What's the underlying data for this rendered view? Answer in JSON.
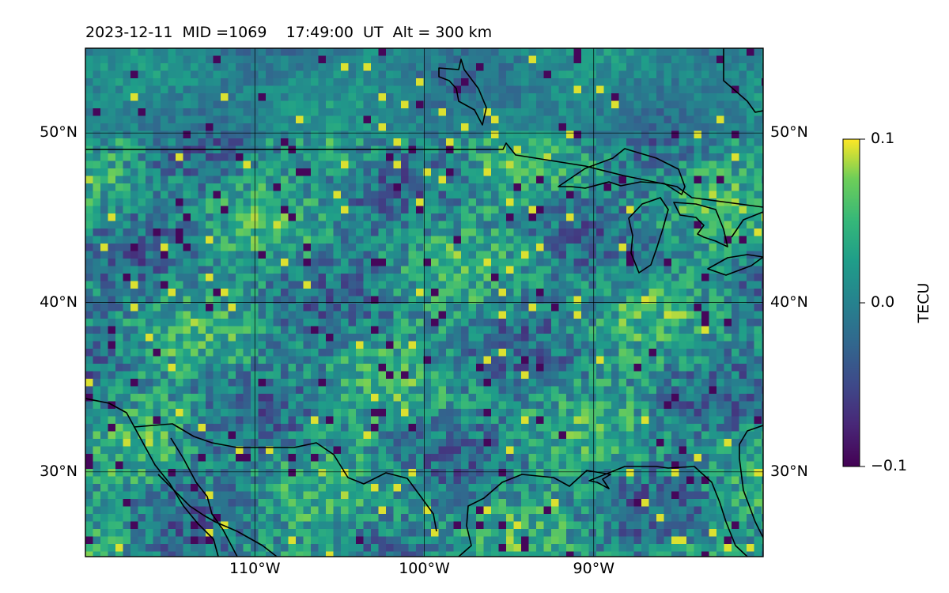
{
  "header": {
    "title": "2023-12-11  MID =1069    17:49:00  UT  Alt = 300 km"
  },
  "map": {
    "lon_range": [
      -120,
      -80
    ],
    "lat_range": [
      25,
      55
    ],
    "gridlines": true,
    "lat_ticks": [
      {
        "value": 30,
        "label": "30°N"
      },
      {
        "value": 40,
        "label": "40°N"
      },
      {
        "value": 50,
        "label": "50°N"
      }
    ],
    "lon_ticks": [
      {
        "value": -110,
        "label": "110°W"
      },
      {
        "value": -100,
        "label": "100°W"
      },
      {
        "value": -90,
        "label": "90°W"
      }
    ],
    "colormap": "viridis",
    "field_pattern": "noisy TEC perturbation field"
  },
  "colorbar": {
    "label": "TECU",
    "min": -0.1,
    "max": 0.1,
    "ticks": [
      {
        "value": 0.1,
        "label": "0.1"
      },
      {
        "value": 0.0,
        "label": "0.0"
      },
      {
        "value": -0.1,
        "label": "−0.1"
      }
    ]
  }
}
